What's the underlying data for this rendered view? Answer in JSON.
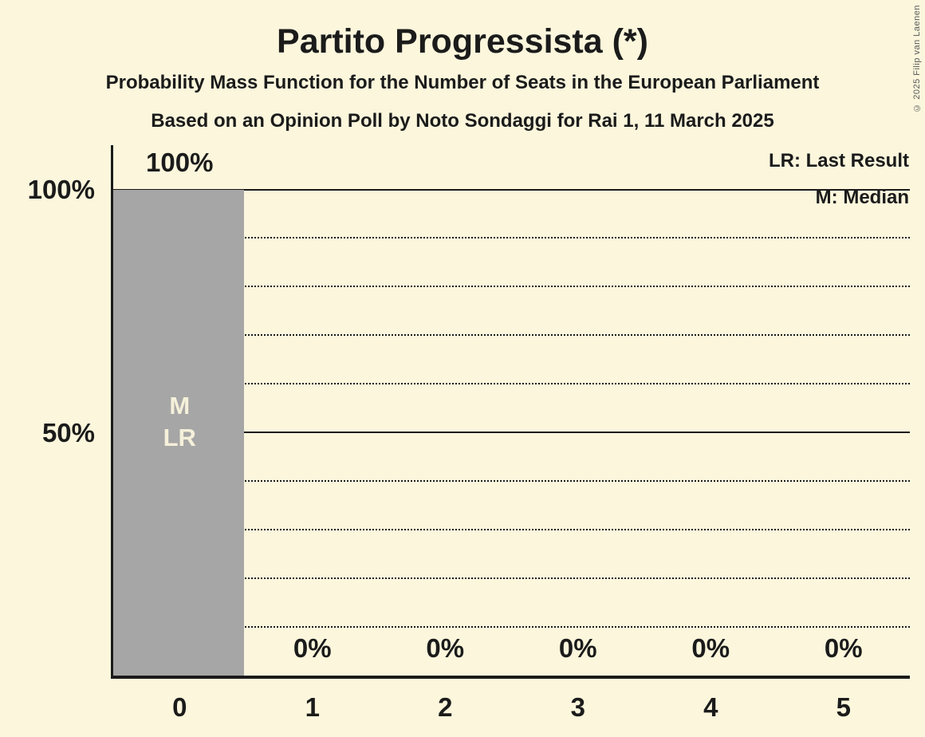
{
  "copyright": "© 2025 Filip van Laenen",
  "colors": {
    "background": "#FBF6DC",
    "bar": "#A6A6A6",
    "ink": "#1B1B1B",
    "in_bar_label": "#F5F0D9",
    "copyright": "#5A5A5A"
  },
  "chart_data": {
    "type": "bar",
    "title": "Partito Progressista (*)",
    "subtitle": "Probability Mass Function for the Number of Seats in the European Parliament",
    "subtitle2": "Based on an Opinion Poll by Noto Sondaggi for Rai 1, 11 March 2025",
    "xlabel": "",
    "ylabel": "",
    "categories": [
      "0",
      "1",
      "2",
      "3",
      "4",
      "5"
    ],
    "values": [
      100,
      0,
      0,
      0,
      0,
      0
    ],
    "bar_labels": [
      "100%",
      "0%",
      "0%",
      "0%",
      "0%",
      "0%"
    ],
    "bar_annotations": [
      [
        "M",
        "LR"
      ],
      [],
      [],
      [],
      [],
      []
    ],
    "yticks": [
      {
        "label": "100%",
        "value": 100
      },
      {
        "label": "50%",
        "value": 50
      }
    ],
    "ylim": [
      0,
      100
    ],
    "solid_gridlines": [
      50,
      100
    ],
    "dotted_gridlines": [
      10,
      20,
      30,
      40,
      60,
      70,
      80,
      90
    ],
    "legend": {
      "lr": "LR: Last Result",
      "m": "M: Median"
    },
    "median_seats": "0",
    "last_result_seats": "0"
  }
}
